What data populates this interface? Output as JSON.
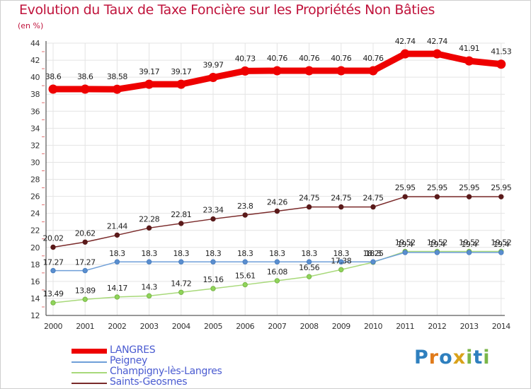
{
  "title": "Evolution du Taux de Taxe Foncière sur les Propriétés Non Bâties",
  "subtitle": "(en %)",
  "logo": {
    "letters": [
      "P",
      "r",
      "o",
      "x",
      "i",
      "t",
      "i"
    ],
    "colors": [
      "#2e7fbe",
      "#e07a1a",
      "#2e7fbe",
      "#d9a21a",
      "#7ab648",
      "#2e7fbe",
      "#7ab648"
    ]
  },
  "chart_data": {
    "type": "line",
    "x": [
      "2000",
      "2001",
      "2002",
      "2003",
      "2004",
      "2005",
      "2006",
      "2007",
      "2008",
      "2009",
      "2010",
      "2011",
      "2012",
      "2013",
      "2014"
    ],
    "ylim": [
      12,
      44
    ],
    "yticks": [
      "12",
      "14",
      "16",
      "18",
      "20",
      "22",
      "24",
      "26",
      "28",
      "30",
      "32",
      "34",
      "36",
      "38",
      "40",
      "42",
      "44"
    ],
    "grid": true,
    "legend_position": "bottom-left",
    "series": [
      {
        "name": "LANGRES",
        "color": "#ee0000",
        "values": [
          38.6,
          38.6,
          38.58,
          39.17,
          39.17,
          39.97,
          40.73,
          40.76,
          40.76,
          40.76,
          40.76,
          42.74,
          42.74,
          41.91,
          41.53
        ],
        "labels": [
          "38.6",
          "38.6",
          "38.58",
          "39.17",
          "39.17",
          "39.97",
          "40.73",
          "40.76",
          "40.76",
          "40.76",
          "40.76",
          "42.74",
          "42.74",
          "41.91",
          "41.53"
        ]
      },
      {
        "name": "Peigney",
        "color": "#6f9fd8",
        "values": [
          17.27,
          17.27,
          18.3,
          18.3,
          18.3,
          18.3,
          18.3,
          18.3,
          18.3,
          18.3,
          18.3,
          19.4,
          19.4,
          19.4,
          19.4
        ],
        "labels": [
          "17.27",
          "17.27",
          "18.3",
          "18.3",
          "18.3",
          "18.3",
          "18.3",
          "18.3",
          "18.3",
          "18.3",
          "18.3",
          "19.4",
          "19.4",
          "19.4",
          "19.4"
        ]
      },
      {
        "name": "Champigny-lès-Langres",
        "color": "#a8d97a",
        "values": [
          13.49,
          13.89,
          14.17,
          14.3,
          14.72,
          15.16,
          15.61,
          16.08,
          16.56,
          17.38,
          18.25,
          19.52,
          19.52,
          19.52,
          19.52
        ],
        "labels": [
          "13.49",
          "13.89",
          "14.17",
          "14.3",
          "14.72",
          "15.16",
          "15.61",
          "16.08",
          "16.56",
          "17.38",
          "18.25",
          "19.52",
          "19.52",
          "19.52",
          "19.52"
        ]
      },
      {
        "name": "Saints-Geosmes",
        "color": "#7a2a2a",
        "values": [
          20.02,
          20.62,
          21.44,
          22.28,
          22.81,
          23.34,
          23.8,
          24.26,
          24.75,
          24.75,
          24.75,
          25.95,
          25.95,
          25.95,
          25.95
        ],
        "labels": [
          "20.02",
          "20.62",
          "21.44",
          "22.28",
          "22.81",
          "23.34",
          "23.8",
          "24.26",
          "24.75",
          "24.75",
          "24.75",
          "25.95",
          "25.95",
          "25.95",
          "25.95"
        ]
      }
    ]
  }
}
